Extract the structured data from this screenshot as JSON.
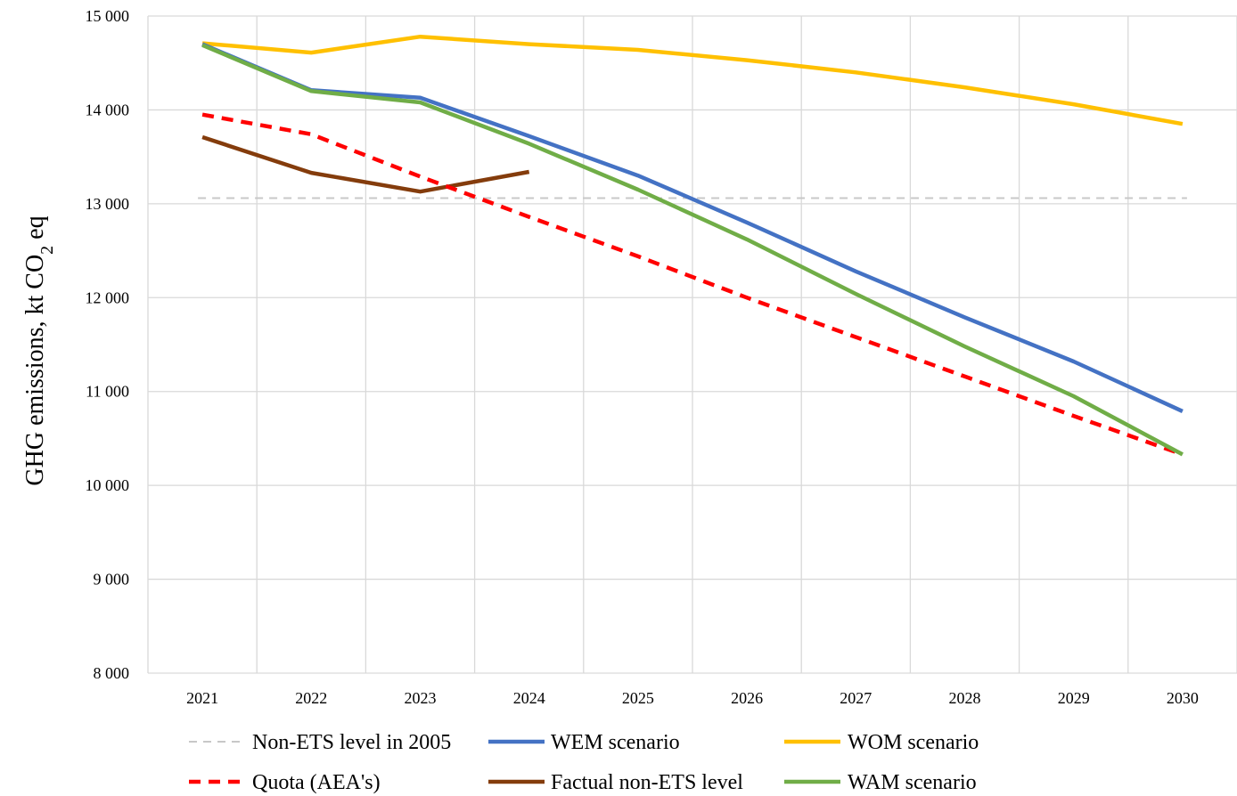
{
  "chart_data": {
    "type": "line",
    "title": "",
    "xlabel": "",
    "ylabel": {
      "main": "GHG emissions, kt CO",
      "subscript": "2",
      "suffix": " eq"
    },
    "ylim": [
      8000,
      15000
    ],
    "y_ticks": [
      {
        "value": 8000,
        "label": "8 000"
      },
      {
        "value": 9000,
        "label": "9 000"
      },
      {
        "value": 10000,
        "label": "10 000"
      },
      {
        "value": 11000,
        "label": "11 000"
      },
      {
        "value": 12000,
        "label": "12 000"
      },
      {
        "value": 13000,
        "label": "13 000"
      },
      {
        "value": 14000,
        "label": "14 000"
      },
      {
        "value": 15000,
        "label": "15 000"
      }
    ],
    "categories": [
      "2021",
      "2022",
      "2023",
      "2024",
      "2025",
      "2026",
      "2027",
      "2028",
      "2029",
      "2030"
    ],
    "grid": true,
    "legend_position": "bottom",
    "series": [
      {
        "name": "Non-ETS level in 2005",
        "color": "#c8c8c8",
        "style": "dashed-thin",
        "values": [
          13060,
          13060,
          13060,
          13060,
          13060,
          13060,
          13060,
          13060,
          13060,
          13060
        ]
      },
      {
        "name": "WEM scenario",
        "color": "#4472c4",
        "style": "solid",
        "values": [
          14700,
          14210,
          14130,
          13720,
          13300,
          12800,
          12280,
          11790,
          11320,
          10790
        ]
      },
      {
        "name": "WOM scenario",
        "color": "#ffc000",
        "style": "solid",
        "values": [
          14710,
          14610,
          14780,
          14700,
          14640,
          14530,
          14400,
          14240,
          14060,
          13850
        ]
      },
      {
        "name": "Quota (AEA's)",
        "color": "#ff0000",
        "style": "dashed-thick",
        "values": [
          13950,
          13740,
          13290,
          12860,
          12440,
          12000,
          11580,
          11160,
          10740,
          10330
        ]
      },
      {
        "name": "Factual non-ETS level",
        "color": "#843c0c",
        "style": "solid",
        "values": [
          13710,
          13330,
          13130,
          13340,
          null,
          null,
          null,
          null,
          null,
          null
        ]
      },
      {
        "name": "WAM scenario",
        "color": "#70ad47",
        "style": "solid",
        "values": [
          14690,
          14200,
          14080,
          13640,
          13150,
          12620,
          12040,
          11480,
          10950,
          10330
        ]
      }
    ]
  }
}
